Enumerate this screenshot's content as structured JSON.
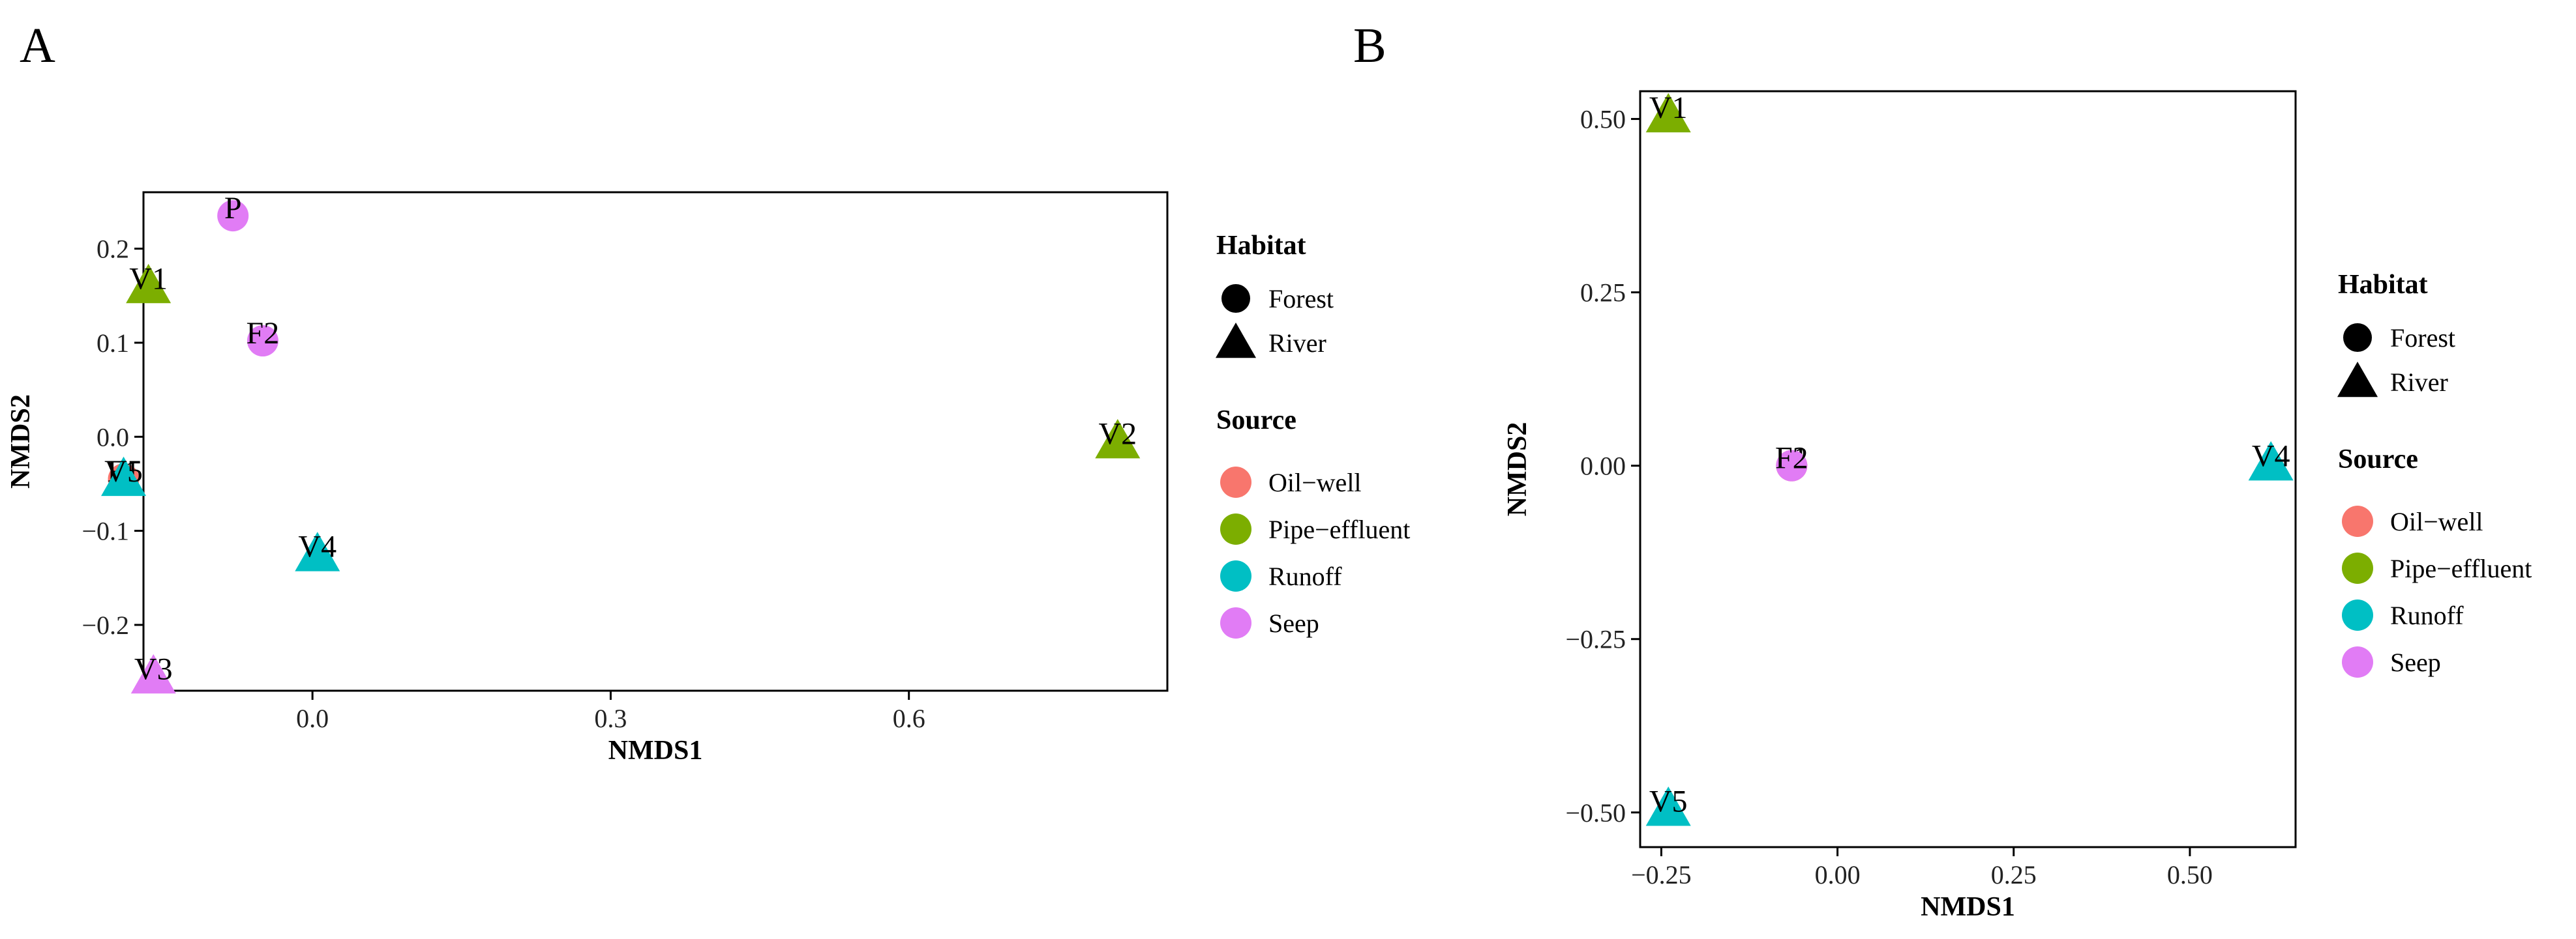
{
  "panel_labels": [
    "A",
    "B"
  ],
  "legend": {
    "habitat_title": "Habitat",
    "habitat_items": [
      {
        "label": "Forest",
        "shape": "circle"
      },
      {
        "label": "River",
        "shape": "triangle"
      }
    ],
    "source_title": "Source",
    "source_items": [
      {
        "label": "Oil−well",
        "color": "#F8766D"
      },
      {
        "label": "Pipe−effluent",
        "color": "#7CAE00"
      },
      {
        "label": "Runoff",
        "color": "#00BFC4"
      },
      {
        "label": "Seep",
        "color": "#E17CF5"
      }
    ]
  },
  "chart_data": [
    {
      "type": "scatter",
      "panel": "A",
      "xlabel": "NMDS1",
      "ylabel": "NMDS2",
      "xlim": [
        -0.17,
        0.86
      ],
      "ylim": [
        -0.27,
        0.26
      ],
      "xticks": [
        0.0,
        0.3,
        0.6
      ],
      "xtick_labels": [
        "0.0",
        "0.3",
        "0.6"
      ],
      "yticks": [
        0.2,
        0.1,
        0.0,
        -0.1,
        -0.2
      ],
      "ytick_labels": [
        "0.2",
        "0.1",
        "0.0",
        "−0.1",
        "−0.2"
      ],
      "points": [
        {
          "label": "P",
          "x": -0.08,
          "y": 0.235,
          "habitat": "Forest",
          "source": "Seep"
        },
        {
          "label": "F2",
          "x": -0.05,
          "y": 0.102,
          "habitat": "Forest",
          "source": "Seep"
        },
        {
          "label": "V1",
          "x": -0.165,
          "y": 0.16,
          "habitat": "River",
          "source": "Pipe−effluent"
        },
        {
          "label": "V2",
          "x": 0.81,
          "y": -0.005,
          "habitat": "River",
          "source": "Pipe−effluent"
        },
        {
          "label": "F1",
          "x": -0.19,
          "y": -0.045,
          "habitat": "Forest",
          "source": "Oil−well"
        },
        {
          "label": "V5",
          "x": -0.19,
          "y": -0.045,
          "habitat": "River",
          "source": "Runoff"
        },
        {
          "label": "V4",
          "x": 0.005,
          "y": -0.125,
          "habitat": "River",
          "source": "Runoff"
        },
        {
          "label": "V3",
          "x": -0.16,
          "y": -0.255,
          "habitat": "River",
          "source": "Seep"
        }
      ]
    },
    {
      "type": "scatter",
      "panel": "B",
      "xlabel": "NMDS1",
      "ylabel": "NMDS2",
      "xlim": [
        -0.28,
        0.65
      ],
      "ylim": [
        -0.55,
        0.54
      ],
      "xticks": [
        -0.25,
        0.0,
        0.25,
        0.5
      ],
      "xtick_labels": [
        "−0.25",
        "0.00",
        "0.25",
        "0.50"
      ],
      "yticks": [
        0.5,
        0.25,
        0.0,
        -0.25,
        -0.5
      ],
      "ytick_labels": [
        "0.50",
        "0.25",
        "0.00",
        "−0.25",
        "−0.50"
      ],
      "points": [
        {
          "label": "V1",
          "x": -0.24,
          "y": 0.505,
          "habitat": "River",
          "source": "Pipe−effluent"
        },
        {
          "label": "F1",
          "x": -0.065,
          "y": 0.0,
          "habitat": "Forest",
          "source": "Oil−well"
        },
        {
          "label": "F2",
          "x": -0.065,
          "y": 0.0,
          "habitat": "Forest",
          "source": "Seep"
        },
        {
          "label": "V4",
          "x": 0.615,
          "y": 0.003,
          "habitat": "River",
          "source": "Runoff"
        },
        {
          "label": "V5",
          "x": -0.24,
          "y": -0.495,
          "habitat": "River",
          "source": "Runoff"
        }
      ]
    }
  ]
}
